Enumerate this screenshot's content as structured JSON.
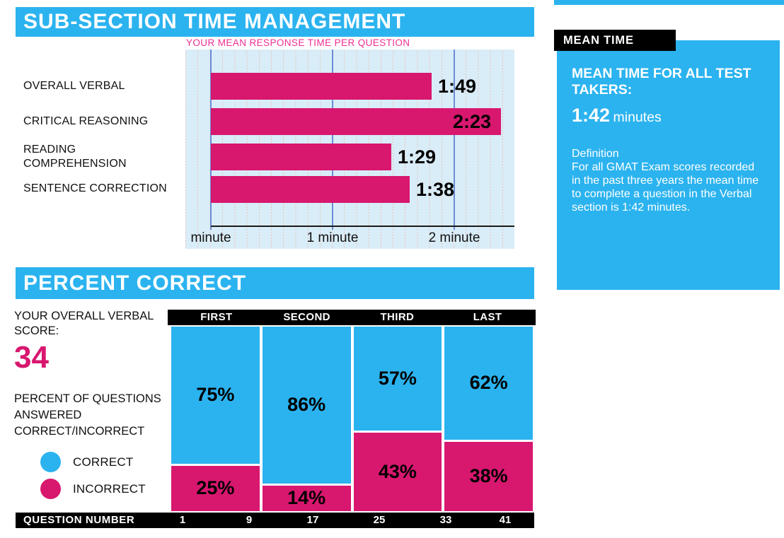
{
  "section_time": {
    "title": "SUB-SECTION TIME MANAGEMENT",
    "chart_title": "YOUR MEAN RESPONSE TIME PER QUESTION"
  },
  "mean_time_panel": {
    "tab_label": "MEAN TIME",
    "heading": "MEAN TIME FOR ALL TEST TAKERS:",
    "value": "1:42",
    "unit": "minutes",
    "definition_title": "Definition",
    "definition_body": "For all GMAT Exam scores recorded in the past three years the mean time to complete a question in the Verbal section is 1:42 minutes."
  },
  "section_percent": {
    "title": "PERCENT CORRECT",
    "score_label": "YOUR OVERALL VERBAL SCORE:",
    "score_value": "34",
    "subtitle": "PERCENT OF QUESTIONS ANSWERED CORRECT/INCORRECT",
    "legend": [
      {
        "label": "CORRECT",
        "color": "#2BB3EF"
      },
      {
        "label": "INCORRECT",
        "color": "#D8176F"
      }
    ]
  },
  "colors": {
    "accent_cyan": "#2BB3EF",
    "accent_magenta": "#D8176F",
    "chart_background": "#D9EDF8",
    "grid_blue": "#6C8CD5",
    "grid_dotted_pink": "#E8C2BA",
    "header_black": "#000000",
    "title_pink": "#ED2E92"
  },
  "chart_data": [
    {
      "type": "bar",
      "title": "YOUR MEAN RESPONSE TIME PER QUESTION",
      "orientation": "horizontal",
      "categories": [
        "OVERALL VERBAL",
        "CRITICAL REASONING",
        "READING COMPREHENSION",
        "SENTENCE CORRECTION"
      ],
      "values": [
        "1:49",
        "2:23",
        "1:29",
        "1:38"
      ],
      "values_seconds": [
        109,
        143,
        89,
        98
      ],
      "xlabel": "",
      "ylabel": "",
      "xtick_labels": [
        "minute",
        "1 minute",
        "2 minute"
      ],
      "xtick_minutes": [
        0,
        1,
        2
      ],
      "xlim_minutes": [
        0,
        2.5
      ],
      "grid": "blue major lines per minute with pink dotted minor lines every 6 seconds",
      "bar_color": "#D8176F"
    },
    {
      "type": "stacked-bar",
      "categories": [
        "FIRST",
        "SECOND",
        "THIRD",
        "LAST"
      ],
      "series": [
        {
          "name": "CORRECT",
          "color": "#2BB3EF",
          "values": [
            75,
            86,
            57,
            62
          ],
          "labels": [
            "75%",
            "86%",
            "57%",
            "62%"
          ]
        },
        {
          "name": "INCORRECT",
          "color": "#D8176F",
          "values": [
            25,
            14,
            43,
            38
          ],
          "labels": [
            "25%",
            "14%",
            "43%",
            "38%"
          ]
        }
      ],
      "value_unit": "percent",
      "x_axis_label": "QUESTION NUMBER",
      "question_numbers": [
        "1",
        "9",
        "17",
        "25",
        "33",
        "41"
      ],
      "legend_position": "left"
    }
  ]
}
